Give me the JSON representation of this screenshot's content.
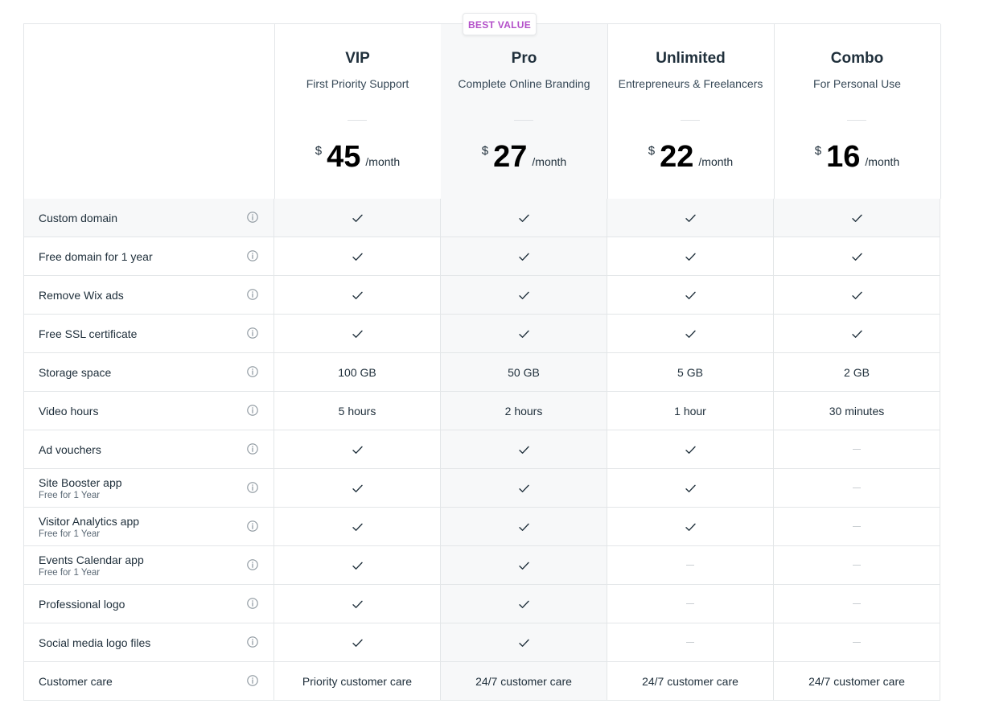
{
  "badge": "BEST VALUE",
  "plans": [
    {
      "name": "VIP",
      "subtitle": "First Priority Support",
      "currency": "$",
      "price": "45",
      "period": "/month"
    },
    {
      "name": "Pro",
      "subtitle": "Complete Online Branding",
      "currency": "$",
      "price": "27",
      "period": "/month"
    },
    {
      "name": "Unlimited",
      "subtitle": "Entrepreneurs & Freelancers",
      "currency": "$",
      "price": "22",
      "period": "/month"
    },
    {
      "name": "Combo",
      "subtitle": "For Personal Use",
      "currency": "$",
      "price": "16",
      "period": "/month"
    }
  ],
  "features": [
    {
      "label": "Custom domain",
      "note": "",
      "values": [
        "check",
        "check",
        "check",
        "check"
      ]
    },
    {
      "label": "Free domain for 1 year",
      "note": "",
      "values": [
        "check",
        "check",
        "check",
        "check"
      ]
    },
    {
      "label": "Remove Wix ads",
      "note": "",
      "values": [
        "check",
        "check",
        "check",
        "check"
      ]
    },
    {
      "label": "Free SSL certificate",
      "note": "",
      "values": [
        "check",
        "check",
        "check",
        "check"
      ]
    },
    {
      "label": "Storage space",
      "note": "",
      "values": [
        "100 GB",
        "50 GB",
        "5 GB",
        "2 GB"
      ]
    },
    {
      "label": "Video hours",
      "note": "",
      "values": [
        "5 hours",
        "2 hours",
        "1 hour",
        "30 minutes"
      ]
    },
    {
      "label": "Ad vouchers",
      "note": "",
      "values": [
        "check",
        "check",
        "check",
        "dash"
      ]
    },
    {
      "label": "Site Booster app",
      "note": "Free for 1 Year",
      "values": [
        "check",
        "check",
        "check",
        "dash"
      ]
    },
    {
      "label": "Visitor Analytics app",
      "note": "Free for 1 Year",
      "values": [
        "check",
        "check",
        "check",
        "dash"
      ]
    },
    {
      "label": "Events Calendar app",
      "note": "Free for 1 Year",
      "values": [
        "check",
        "check",
        "dash",
        "dash"
      ]
    },
    {
      "label": "Professional logo",
      "note": "",
      "values": [
        "check",
        "check",
        "dash",
        "dash"
      ]
    },
    {
      "label": "Social media logo files",
      "note": "",
      "values": [
        "check",
        "check",
        "dash",
        "dash"
      ]
    },
    {
      "label": "Customer care",
      "note": "",
      "values": [
        "Priority customer care",
        "24/7 customer care",
        "24/7 customer care",
        "24/7 customer care"
      ]
    }
  ],
  "icons": {
    "info": "info-icon",
    "included": "check-icon",
    "not_included": "dash-icon"
  },
  "colors": {
    "badge_text": "#b34fc9",
    "highlight_bg": "#f7f8f9",
    "border": "#e3e6e8"
  }
}
